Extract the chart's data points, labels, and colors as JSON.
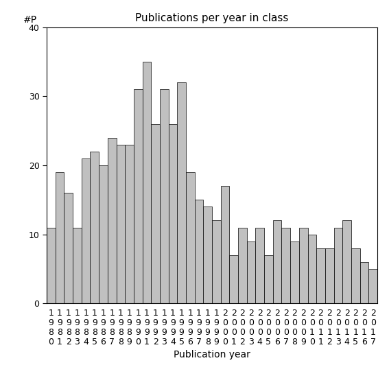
{
  "title": "Publications per year in class",
  "xlabel": "Publication year",
  "ylabel": "#P",
  "years": [
    1980,
    1981,
    1982,
    1983,
    1984,
    1985,
    1986,
    1987,
    1988,
    1989,
    1990,
    1991,
    1992,
    1993,
    1994,
    1995,
    1996,
    1997,
    1998,
    1999,
    2000,
    2001,
    2002,
    2003,
    2004,
    2005,
    2006,
    2007,
    2008,
    2009,
    2010,
    2011,
    2012,
    2013,
    2014,
    2015,
    2016,
    2017
  ],
  "values": [
    11,
    19,
    16,
    11,
    21,
    22,
    20,
    24,
    23,
    23,
    31,
    35,
    26,
    31,
    26,
    32,
    19,
    15,
    14,
    12,
    17,
    7,
    11,
    9,
    11,
    7,
    12,
    11,
    9,
    11,
    10,
    8,
    8,
    11,
    12,
    8,
    6,
    5
  ],
  "bar_color": "#c0c0c0",
  "bar_edgecolor": "#000000",
  "ylim": [
    0,
    40
  ],
  "yticks": [
    0,
    10,
    20,
    30,
    40
  ],
  "background_color": "#ffffff",
  "title_fontsize": 11,
  "label_fontsize": 10,
  "tick_fontsize": 9
}
